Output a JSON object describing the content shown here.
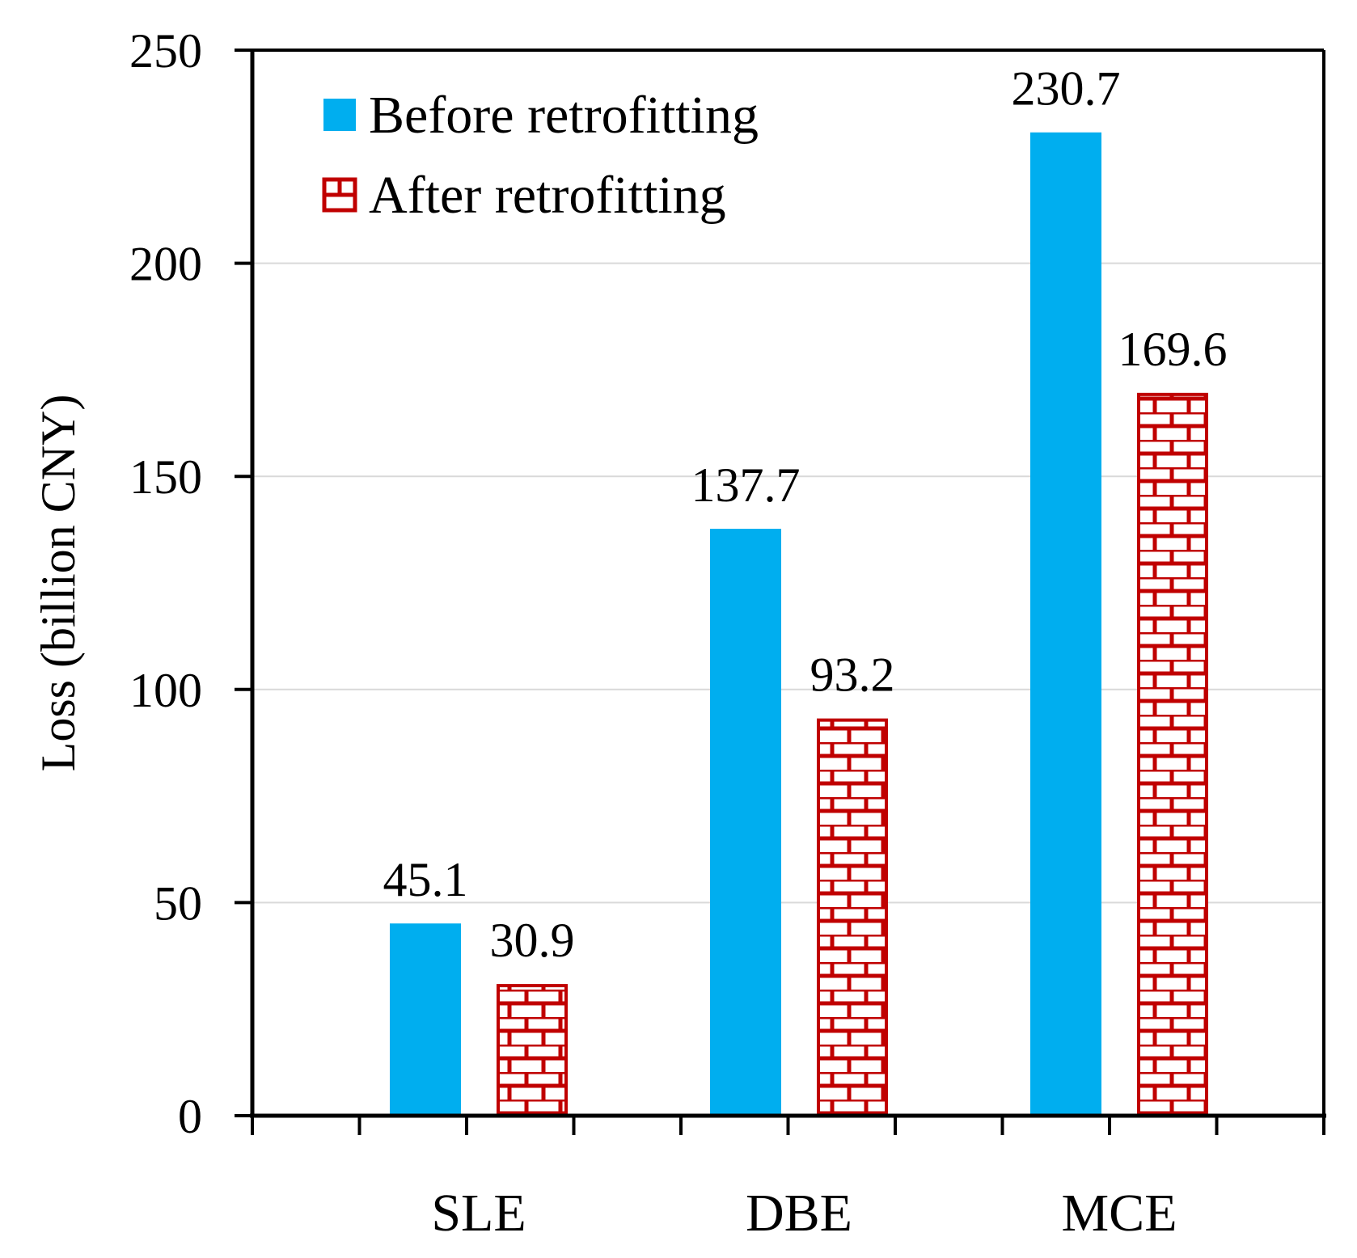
{
  "chart_data": {
    "type": "bar",
    "title": "",
    "xlabel": "",
    "ylabel": "Loss (billion CNY)",
    "categories": [
      "SLE",
      "DBE",
      "MCE"
    ],
    "series": [
      {
        "name": "Before retrofitting",
        "values": [
          45.1,
          137.7,
          230.7
        ],
        "labels": [
          "45.1",
          "137.7",
          "230.7"
        ],
        "fill": "solid",
        "color": "#00AEEF"
      },
      {
        "name": "After retrofitting",
        "values": [
          30.9,
          93.2,
          169.6
        ],
        "labels": [
          "30.9",
          "93.2",
          "169.6"
        ],
        "fill": "brick-pattern",
        "color": "#C00000"
      }
    ],
    "ylim": [
      0,
      250
    ],
    "yticks": [
      0,
      50,
      100,
      150,
      200,
      250
    ],
    "ytick_labels": [
      "0",
      "50",
      "100",
      "150",
      "200",
      "250"
    ],
    "grid": true,
    "gridline_color": "#D9D9D9",
    "legend_position": "top-left"
  }
}
